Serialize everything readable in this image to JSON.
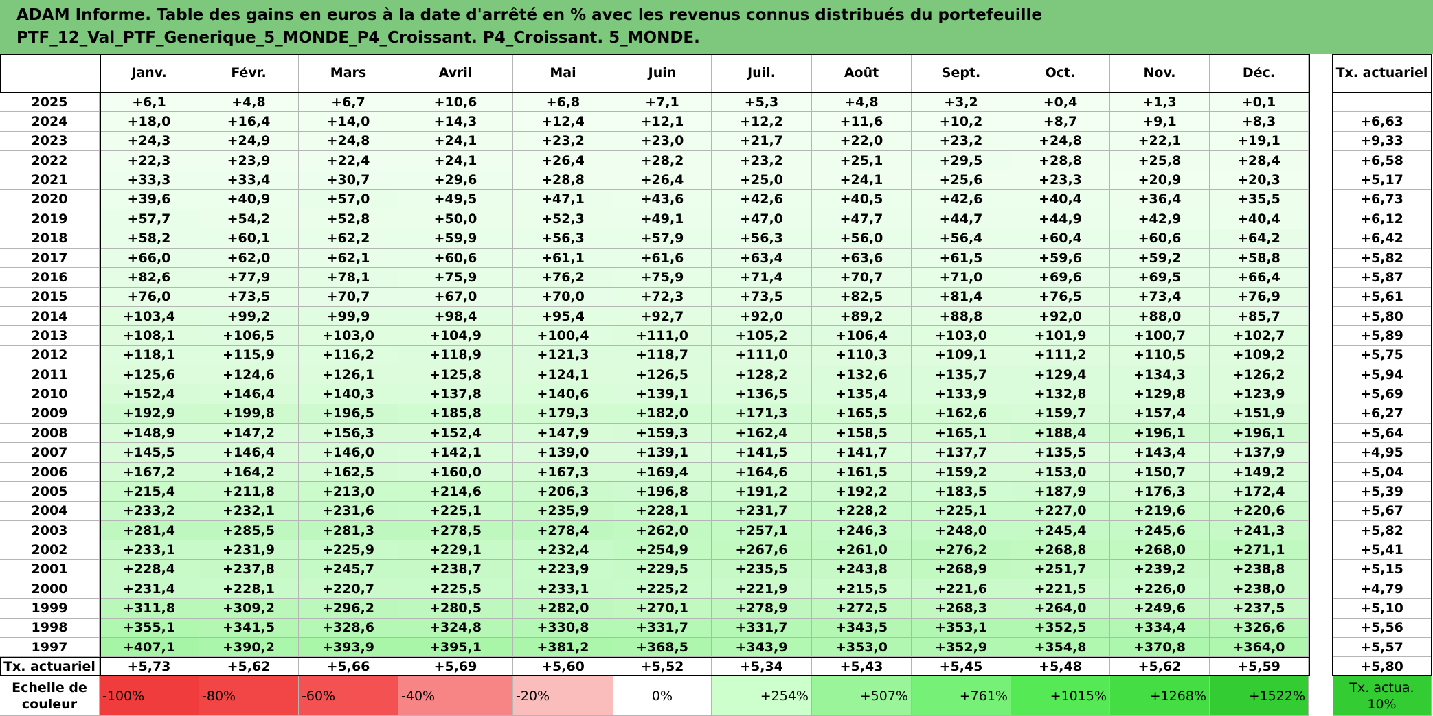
{
  "header": {
    "title_line1": "ADAM Informe. Table des gains en euros à la date d'arrêté en % avec les revenus connus distribués du portefeuille",
    "title_line2": "PTF_12_Val_PTF_Generique_5_MONDE_P4_Croissant. P4_Croissant. 5_MONDE."
  },
  "table": {
    "columns": [
      "Janv.",
      "Févr.",
      "Mars",
      "Avril",
      "Mai",
      "Juin",
      "Juil.",
      "Août",
      "Sept.",
      "Oct.",
      "Nov.",
      "Déc."
    ],
    "rate_header": "Tx. actuariel",
    "rows": [
      {
        "year": "2025",
        "values": [
          "+6,1",
          "+4,8",
          "+6,7",
          "+10,6",
          "+6,8",
          "+7,1",
          "+5,3",
          "+4,8",
          "+3,2",
          "+0,4",
          "+1,3",
          "+0,1"
        ]
      },
      {
        "year": "2024",
        "values": [
          "+18,0",
          "+16,4",
          "+14,0",
          "+14,3",
          "+12,4",
          "+12,1",
          "+12,2",
          "+11,6",
          "+10,2",
          "+8,7",
          "+9,1",
          "+8,3"
        ],
        "rate": "+6,63"
      },
      {
        "year": "2023",
        "values": [
          "+24,3",
          "+24,9",
          "+24,8",
          "+24,1",
          "+23,2",
          "+23,0",
          "+21,7",
          "+22,0",
          "+23,2",
          "+24,8",
          "+22,1",
          "+19,1"
        ],
        "rate": "+9,33"
      },
      {
        "year": "2022",
        "values": [
          "+22,3",
          "+23,9",
          "+22,4",
          "+24,1",
          "+26,4",
          "+28,2",
          "+23,2",
          "+25,1",
          "+29,5",
          "+28,8",
          "+25,8",
          "+28,4"
        ],
        "rate": "+6,58"
      },
      {
        "year": "2021",
        "values": [
          "+33,3",
          "+33,4",
          "+30,7",
          "+29,6",
          "+28,8",
          "+26,4",
          "+25,0",
          "+24,1",
          "+25,6",
          "+23,3",
          "+20,9",
          "+20,3"
        ],
        "rate": "+5,17"
      },
      {
        "year": "2020",
        "values": [
          "+39,6",
          "+40,9",
          "+57,0",
          "+49,5",
          "+47,1",
          "+43,6",
          "+42,6",
          "+40,5",
          "+42,6",
          "+40,4",
          "+36,4",
          "+35,5"
        ],
        "rate": "+6,73"
      },
      {
        "year": "2019",
        "values": [
          "+57,7",
          "+54,2",
          "+52,8",
          "+50,0",
          "+52,3",
          "+49,1",
          "+47,0",
          "+47,7",
          "+44,7",
          "+44,9",
          "+42,9",
          "+40,4"
        ],
        "rate": "+6,12"
      },
      {
        "year": "2018",
        "values": [
          "+58,2",
          "+60,1",
          "+62,2",
          "+59,9",
          "+56,3",
          "+57,9",
          "+56,3",
          "+56,0",
          "+56,4",
          "+60,4",
          "+60,6",
          "+64,2"
        ],
        "rate": "+6,42"
      },
      {
        "year": "2017",
        "values": [
          "+66,0",
          "+62,0",
          "+62,1",
          "+60,6",
          "+61,1",
          "+61,6",
          "+63,4",
          "+63,6",
          "+61,5",
          "+59,6",
          "+59,2",
          "+58,8"
        ],
        "rate": "+5,82"
      },
      {
        "year": "2016",
        "values": [
          "+82,6",
          "+77,9",
          "+78,1",
          "+75,9",
          "+76,2",
          "+75,9",
          "+71,4",
          "+70,7",
          "+71,0",
          "+69,6",
          "+69,5",
          "+66,4"
        ],
        "rate": "+5,87"
      },
      {
        "year": "2015",
        "values": [
          "+76,0",
          "+73,5",
          "+70,7",
          "+67,0",
          "+70,0",
          "+72,3",
          "+73,5",
          "+82,5",
          "+81,4",
          "+76,5",
          "+73,4",
          "+76,9"
        ],
        "rate": "+5,61"
      },
      {
        "year": "2014",
        "values": [
          "+103,4",
          "+99,2",
          "+99,9",
          "+98,4",
          "+95,4",
          "+92,7",
          "+92,0",
          "+89,2",
          "+88,8",
          "+92,0",
          "+88,0",
          "+85,7"
        ],
        "rate": "+5,80"
      },
      {
        "year": "2013",
        "values": [
          "+108,1",
          "+106,5",
          "+103,0",
          "+104,9",
          "+100,4",
          "+111,0",
          "+105,2",
          "+106,4",
          "+103,0",
          "+101,9",
          "+100,7",
          "+102,7"
        ],
        "rate": "+5,89"
      },
      {
        "year": "2012",
        "values": [
          "+118,1",
          "+115,9",
          "+116,2",
          "+118,9",
          "+121,3",
          "+118,7",
          "+111,0",
          "+110,3",
          "+109,1",
          "+111,2",
          "+110,5",
          "+109,2"
        ],
        "rate": "+5,75"
      },
      {
        "year": "2011",
        "values": [
          "+125,6",
          "+124,6",
          "+126,1",
          "+125,8",
          "+124,1",
          "+126,5",
          "+128,2",
          "+132,6",
          "+135,7",
          "+129,4",
          "+134,3",
          "+126,2"
        ],
        "rate": "+5,94"
      },
      {
        "year": "2010",
        "values": [
          "+152,4",
          "+146,4",
          "+140,3",
          "+137,8",
          "+140,6",
          "+139,1",
          "+136,5",
          "+135,4",
          "+133,9",
          "+132,8",
          "+129,8",
          "+123,9"
        ],
        "rate": "+5,69"
      },
      {
        "year": "2009",
        "values": [
          "+192,9",
          "+199,8",
          "+196,5",
          "+185,8",
          "+179,3",
          "+182,0",
          "+171,3",
          "+165,5",
          "+162,6",
          "+159,7",
          "+157,4",
          "+151,9"
        ],
        "rate": "+6,27"
      },
      {
        "year": "2008",
        "values": [
          "+148,9",
          "+147,2",
          "+156,3",
          "+152,4",
          "+147,9",
          "+159,3",
          "+162,4",
          "+158,5",
          "+165,1",
          "+188,4",
          "+196,1",
          "+196,1"
        ],
        "rate": "+5,64"
      },
      {
        "year": "2007",
        "values": [
          "+145,5",
          "+146,4",
          "+146,0",
          "+142,1",
          "+139,0",
          "+139,1",
          "+141,5",
          "+141,7",
          "+137,7",
          "+135,5",
          "+143,4",
          "+137,9"
        ],
        "rate": "+4,95"
      },
      {
        "year": "2006",
        "values": [
          "+167,2",
          "+164,2",
          "+162,5",
          "+160,0",
          "+167,3",
          "+169,4",
          "+164,6",
          "+161,5",
          "+159,2",
          "+153,0",
          "+150,7",
          "+149,2"
        ],
        "rate": "+5,04"
      },
      {
        "year": "2005",
        "values": [
          "+215,4",
          "+211,8",
          "+213,0",
          "+214,6",
          "+206,3",
          "+196,8",
          "+191,2",
          "+192,2",
          "+183,5",
          "+187,9",
          "+176,3",
          "+172,4"
        ],
        "rate": "+5,39"
      },
      {
        "year": "2004",
        "values": [
          "+233,2",
          "+232,1",
          "+231,6",
          "+225,1",
          "+235,9",
          "+228,1",
          "+231,7",
          "+228,2",
          "+225,1",
          "+227,0",
          "+219,6",
          "+220,6"
        ],
        "rate": "+5,67"
      },
      {
        "year": "2003",
        "values": [
          "+281,4",
          "+285,5",
          "+281,3",
          "+278,5",
          "+278,4",
          "+262,0",
          "+257,1",
          "+246,3",
          "+248,0",
          "+245,4",
          "+245,6",
          "+241,3"
        ],
        "rate": "+5,82"
      },
      {
        "year": "2002",
        "values": [
          "+233,1",
          "+231,9",
          "+225,9",
          "+229,1",
          "+232,4",
          "+254,9",
          "+267,6",
          "+261,0",
          "+276,2",
          "+268,8",
          "+268,0",
          "+271,1"
        ],
        "rate": "+5,41"
      },
      {
        "year": "2001",
        "values": [
          "+228,4",
          "+237,8",
          "+245,7",
          "+238,7",
          "+223,9",
          "+229,5",
          "+235,5",
          "+243,8",
          "+268,9",
          "+251,7",
          "+239,2",
          "+238,8"
        ],
        "rate": "+5,15"
      },
      {
        "year": "2000",
        "values": [
          "+231,4",
          "+228,1",
          "+220,7",
          "+225,5",
          "+233,1",
          "+225,2",
          "+221,9",
          "+215,5",
          "+221,6",
          "+221,5",
          "+226,0",
          "+238,0"
        ],
        "rate": "+4,79"
      },
      {
        "year": "1999",
        "values": [
          "+311,8",
          "+309,2",
          "+296,2",
          "+280,5",
          "+282,0",
          "+270,1",
          "+278,9",
          "+272,5",
          "+268,3",
          "+264,0",
          "+249,6",
          "+237,5"
        ],
        "rate": "+5,10"
      },
      {
        "year": "1998",
        "values": [
          "+355,1",
          "+341,5",
          "+328,6",
          "+324,8",
          "+330,8",
          "+331,7",
          "+331,7",
          "+343,5",
          "+353,1",
          "+352,5",
          "+334,4",
          "+326,6"
        ],
        "rate": "+5,56"
      },
      {
        "year": "1997",
        "values": [
          "+407,1",
          "+390,2",
          "+393,9",
          "+395,1",
          "+381,2",
          "+368,5",
          "+343,9",
          "+353,0",
          "+352,9",
          "+354,8",
          "+370,8",
          "+364,0"
        ],
        "rate": "+5,57"
      }
    ],
    "footer": {
      "label": "Tx. actuariel",
      "values": [
        "+5,73",
        "+5,62",
        "+5,66",
        "+5,69",
        "+5,60",
        "+5,52",
        "+5,34",
        "+5,43",
        "+5,45",
        "+5,48",
        "+5,62",
        "+5,59"
      ],
      "rate": "+5,80"
    }
  },
  "scale": {
    "label": "Echelle de couleur",
    "items": [
      {
        "label": "-100%",
        "color": "#f03c3c"
      },
      {
        "label": "-80%",
        "color": "#f24646"
      },
      {
        "label": "-60%",
        "color": "#f45252"
      },
      {
        "label": "-40%",
        "color": "#f78585"
      },
      {
        "label": "-20%",
        "color": "#fbbcbc"
      },
      {
        "label": "0%",
        "color": "#ffffff"
      },
      {
        "label": "+254%",
        "color": "#ccffcc"
      },
      {
        "label": "+507%",
        "color": "#9af59a"
      },
      {
        "label": "+761%",
        "color": "#77f077"
      },
      {
        "label": "+1015%",
        "color": "#55ea55"
      },
      {
        "label": "+1268%",
        "color": "#44de44"
      },
      {
        "label": "+1522%",
        "color": "#33cc33"
      }
    ],
    "rate_label": "Tx. actua. 10%",
    "rate_color": "#33cc33"
  }
}
